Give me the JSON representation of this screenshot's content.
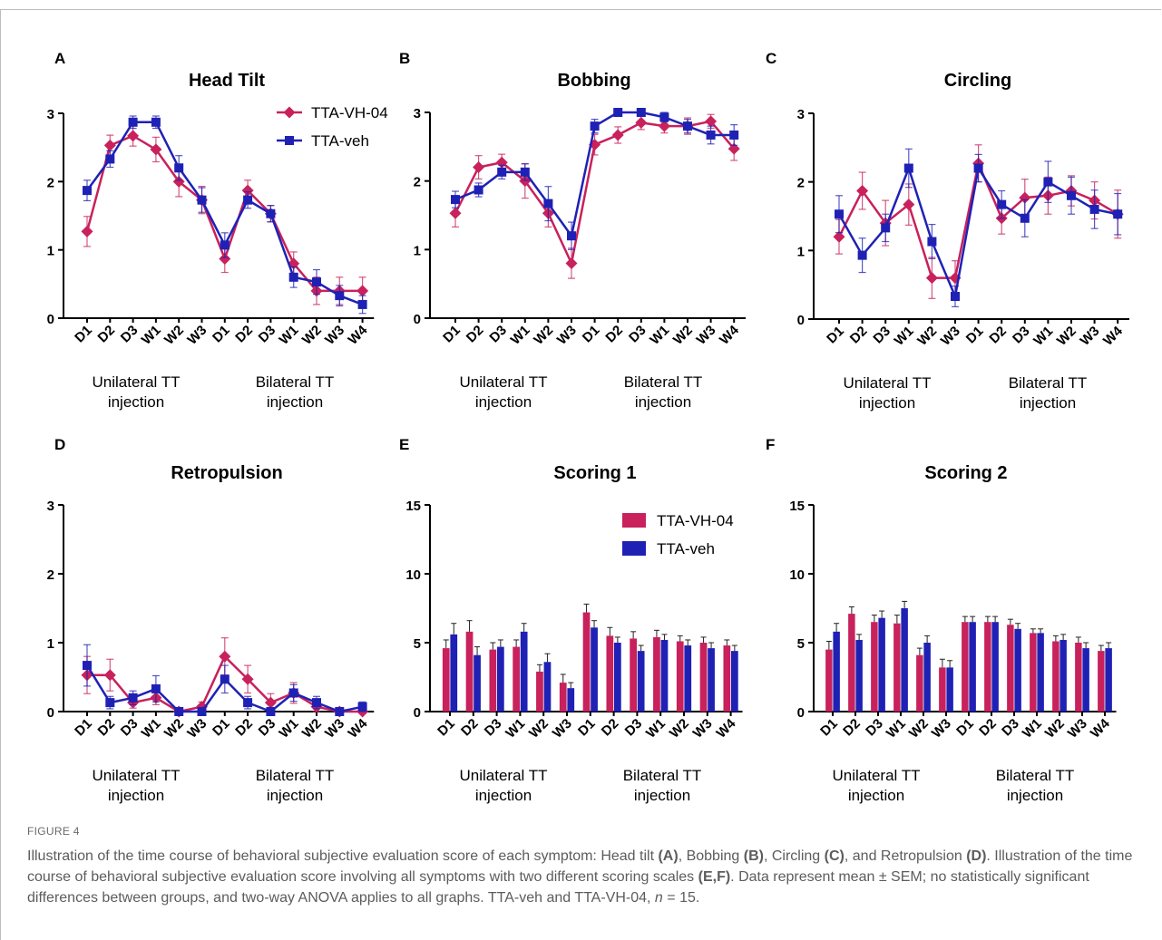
{
  "figure_label": "FIGURE 4",
  "caption": {
    "p1": "Illustration of the time course of behavioral subjective evaluation score of each symptom: Head tilt ",
    "a": "(A)",
    "p2": ", Bobbing ",
    "b": "(B)",
    "p3": ", Circling ",
    "c": "(C)",
    "p4": ", and Retropulsion ",
    "d": "(D)",
    "p5": ". Illustration of the time course of behavioral subjective evaluation score involving all symptoms with two different scoring scales ",
    "ef": "(E,F)",
    "p6": ". Data represent mean ± SEM; no statistically significant differences between groups, and two-way ANOVA applies to all graphs. TTA-veh and TTA-VH-04, ",
    "n_var": "n",
    "p7": " = 15."
  },
  "colors": {
    "vh04": "#c8215c",
    "veh": "#1f21b5",
    "axis": "#000000"
  },
  "group_labels": {
    "unilateral_line1": "Unilateral TT",
    "unilateral_line2": "injection",
    "bilateral_line1": "Bilateral TT",
    "bilateral_line2": "injection"
  },
  "chart_data": [
    {
      "panel": "A",
      "type": "line",
      "title": "Head Tilt",
      "categories": [
        "D1",
        "D2",
        "D3",
        "W1",
        "W2",
        "W3",
        "D1",
        "D2",
        "D3",
        "W1",
        "W2",
        "W3",
        "W4"
      ],
      "ylim": [
        0,
        3
      ],
      "yticks": [
        0,
        1,
        2,
        3
      ],
      "legend": {
        "show": true,
        "placement": "top-right"
      },
      "series": [
        {
          "name": "TTA-VH-04",
          "marker": "diamond",
          "values": [
            1.27,
            2.53,
            2.67,
            2.47,
            2.0,
            1.73,
            0.87,
            1.87,
            1.53,
            0.8,
            0.4,
            0.4,
            0.4
          ],
          "err": [
            0.22,
            0.15,
            0.15,
            0.18,
            0.22,
            0.2,
            0.2,
            0.15,
            0.12,
            0.17,
            0.2,
            0.2,
            0.2
          ]
        },
        {
          "name": "TTA-veh",
          "marker": "square",
          "values": [
            1.87,
            2.33,
            2.87,
            2.87,
            2.2,
            1.73,
            1.07,
            1.73,
            1.53,
            0.6,
            0.53,
            0.33,
            0.2
          ],
          "err": [
            0.15,
            0.12,
            0.09,
            0.09,
            0.18,
            0.18,
            0.18,
            0.12,
            0.12,
            0.15,
            0.18,
            0.15,
            0.13
          ]
        }
      ]
    },
    {
      "panel": "B",
      "type": "line",
      "title": "Bobbing",
      "categories": [
        "D1",
        "D2",
        "D3",
        "W1",
        "W2",
        "W3",
        "D1",
        "D2",
        "D3",
        "W1",
        "W2",
        "W3",
        "W4"
      ],
      "ylim": [
        0,
        3
      ],
      "yticks": [
        0,
        1,
        2,
        3
      ],
      "legend": {
        "show": false
      },
      "series": [
        {
          "name": "TTA-VH-04",
          "marker": "diamond",
          "values": [
            1.53,
            2.2,
            2.27,
            2.0,
            1.53,
            0.8,
            2.53,
            2.67,
            2.85,
            2.8,
            2.8,
            2.87,
            2.47
          ],
          "err": [
            0.2,
            0.17,
            0.12,
            0.25,
            0.2,
            0.22,
            0.15,
            0.12,
            0.1,
            0.1,
            0.12,
            0.1,
            0.17
          ]
        },
        {
          "name": "TTA-veh",
          "marker": "square",
          "values": [
            1.73,
            1.87,
            2.13,
            2.13,
            1.67,
            1.2,
            2.8,
            3.0,
            3.0,
            2.93,
            2.8,
            2.67,
            2.67
          ],
          "err": [
            0.12,
            0.1,
            0.1,
            0.12,
            0.25,
            0.2,
            0.1,
            0.0,
            0.0,
            0.07,
            0.1,
            0.13,
            0.15
          ]
        }
      ]
    },
    {
      "panel": "C",
      "type": "line",
      "title": "Circling",
      "categories": [
        "D1",
        "D2",
        "D3",
        "W1",
        "W2",
        "W3",
        "D1",
        "D2",
        "D3",
        "W1",
        "W2",
        "W3",
        "W4"
      ],
      "ylim": [
        0,
        3
      ],
      "yticks": [
        0,
        1,
        2,
        3
      ],
      "legend": {
        "show": false
      },
      "series": [
        {
          "name": "TTA-VH-04",
          "marker": "diamond",
          "values": [
            1.2,
            1.87,
            1.4,
            1.67,
            0.6,
            0.6,
            2.27,
            1.47,
            1.77,
            1.8,
            1.87,
            1.73,
            1.53
          ],
          "err": [
            0.25,
            0.27,
            0.33,
            0.3,
            0.3,
            0.25,
            0.27,
            0.23,
            0.27,
            0.27,
            0.22,
            0.27,
            0.35
          ]
        },
        {
          "name": "TTA-veh",
          "marker": "square",
          "values": [
            1.53,
            0.93,
            1.33,
            2.2,
            1.13,
            0.33,
            2.2,
            1.67,
            1.47,
            2.0,
            1.8,
            1.6,
            1.53
          ],
          "err": [
            0.27,
            0.25,
            0.2,
            0.28,
            0.25,
            0.15,
            0.2,
            0.2,
            0.27,
            0.3,
            0.27,
            0.28,
            0.3
          ]
        }
      ]
    },
    {
      "panel": "D",
      "type": "line",
      "title": "Retropulsion",
      "categories": [
        "D1",
        "D2",
        "D3",
        "W1",
        "W2",
        "W3",
        "D1",
        "D2",
        "D3",
        "W1",
        "W2",
        "W3",
        "W4"
      ],
      "ylim": [
        0,
        3
      ],
      "yticks": [
        0,
        1,
        2,
        3
      ],
      "legend": {
        "show": false
      },
      "series": [
        {
          "name": "TTA-VH-04",
          "marker": "diamond",
          "values": [
            0.53,
            0.53,
            0.13,
            0.2,
            0.0,
            0.07,
            0.8,
            0.47,
            0.13,
            0.27,
            0.07,
            0.0,
            0.0
          ],
          "err": [
            0.27,
            0.23,
            0.08,
            0.1,
            0.0,
            0.07,
            0.27,
            0.2,
            0.13,
            0.15,
            0.07,
            0.0,
            0.0
          ]
        },
        {
          "name": "TTA-veh",
          "marker": "square",
          "values": [
            0.67,
            0.13,
            0.2,
            0.33,
            0.0,
            0.0,
            0.47,
            0.13,
            0.0,
            0.27,
            0.13,
            0.0,
            0.07
          ],
          "err": [
            0.3,
            0.09,
            0.1,
            0.19,
            0.0,
            0.0,
            0.2,
            0.09,
            0.0,
            0.12,
            0.09,
            0.0,
            0.07
          ]
        }
      ]
    },
    {
      "panel": "E",
      "type": "bar",
      "title": "Scoring 1",
      "categories": [
        "D1",
        "D2",
        "D3",
        "W1",
        "W2",
        "W3",
        "D1",
        "D2",
        "D3",
        "W1",
        "W2",
        "W3",
        "W4"
      ],
      "ylim": [
        0,
        15
      ],
      "yticks": [
        0,
        5,
        10,
        15
      ],
      "legend": {
        "show": true,
        "placement": "top-right"
      },
      "series": [
        {
          "name": "TTA-VH-04",
          "values": [
            4.6,
            5.8,
            4.5,
            4.7,
            2.9,
            2.1,
            7.2,
            5.5,
            5.3,
            5.4,
            5.1,
            5.0,
            4.8
          ],
          "err": [
            0.6,
            0.8,
            0.5,
            0.5,
            0.5,
            0.6,
            0.6,
            0.6,
            0.5,
            0.5,
            0.4,
            0.4,
            0.4
          ]
        },
        {
          "name": "TTA-veh",
          "values": [
            5.6,
            4.1,
            4.7,
            5.8,
            3.6,
            1.7,
            6.1,
            5.0,
            4.4,
            5.2,
            4.8,
            4.6,
            4.4
          ],
          "err": [
            0.8,
            0.6,
            0.5,
            0.6,
            0.6,
            0.4,
            0.5,
            0.4,
            0.4,
            0.4,
            0.4,
            0.4,
            0.4
          ]
        }
      ]
    },
    {
      "panel": "F",
      "type": "bar",
      "title": "Scoring 2",
      "categories": [
        "D1",
        "D2",
        "D3",
        "W1",
        "W2",
        "W3",
        "D1",
        "D2",
        "D3",
        "W1",
        "W2",
        "W3",
        "W4"
      ],
      "ylim": [
        0,
        15
      ],
      "yticks": [
        0,
        5,
        10,
        15
      ],
      "legend": {
        "show": false
      },
      "series": [
        {
          "name": "TTA-VH-04",
          "values": [
            4.5,
            7.1,
            6.5,
            6.4,
            4.1,
            3.2,
            6.5,
            6.5,
            6.3,
            5.7,
            5.1,
            5.0,
            4.4
          ],
          "err": [
            0.6,
            0.5,
            0.5,
            0.6,
            0.5,
            0.6,
            0.4,
            0.4,
            0.4,
            0.3,
            0.4,
            0.4,
            0.4
          ]
        },
        {
          "name": "TTA-veh",
          "values": [
            5.8,
            5.2,
            6.8,
            7.5,
            5.0,
            3.2,
            6.5,
            6.5,
            6.0,
            5.7,
            5.2,
            4.6,
            4.6
          ],
          "err": [
            0.6,
            0.4,
            0.5,
            0.5,
            0.5,
            0.5,
            0.4,
            0.4,
            0.4,
            0.3,
            0.4,
            0.4,
            0.4
          ]
        }
      ]
    }
  ]
}
